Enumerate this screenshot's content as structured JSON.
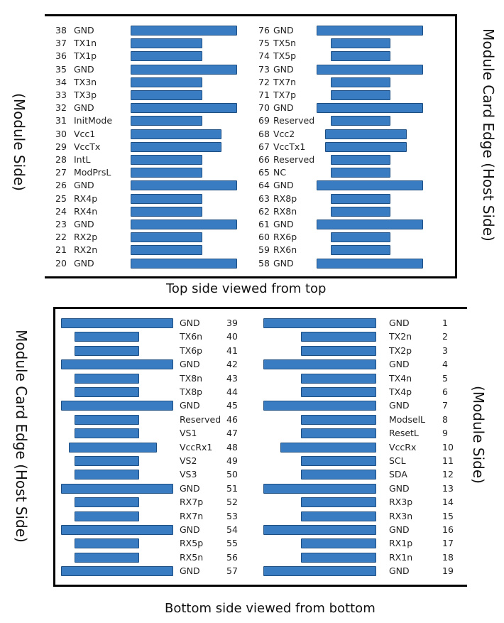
{
  "colors": {
    "pin_fill": "#3a7cc2",
    "pin_border": "#1f4f82",
    "frame": "#000000"
  },
  "top": {
    "caption": "Top side viewed from top",
    "left_side_label": "(Module Side)",
    "right_side_label": "Module Card Edge (Host Side)",
    "left_column": [
      {
        "num": "38",
        "name": "GND",
        "len": "long"
      },
      {
        "num": "37",
        "name": "TX1n",
        "len": "short"
      },
      {
        "num": "36",
        "name": "TX1p",
        "len": "short"
      },
      {
        "num": "35",
        "name": "GND",
        "len": "long"
      },
      {
        "num": "34",
        "name": "TX3n",
        "len": "short"
      },
      {
        "num": "33",
        "name": "TX3p",
        "len": "short"
      },
      {
        "num": "32",
        "name": "GND",
        "len": "long"
      },
      {
        "num": "31",
        "name": "InitMode",
        "len": "short"
      },
      {
        "num": "30",
        "name": "Vcc1",
        "len": "medium"
      },
      {
        "num": "29",
        "name": "VccTx",
        "len": "medium"
      },
      {
        "num": "28",
        "name": "IntL",
        "len": "short"
      },
      {
        "num": "27",
        "name": "ModPrsL",
        "len": "short"
      },
      {
        "num": "26",
        "name": "GND",
        "len": "long"
      },
      {
        "num": "25",
        "name": "RX4p",
        "len": "short"
      },
      {
        "num": "24",
        "name": "RX4n",
        "len": "short"
      },
      {
        "num": "23",
        "name": "GND",
        "len": "long"
      },
      {
        "num": "22",
        "name": "RX2p",
        "len": "short"
      },
      {
        "num": "21",
        "name": "RX2n",
        "len": "short"
      },
      {
        "num": "20",
        "name": "GND",
        "len": "long"
      }
    ],
    "right_column": [
      {
        "num": "76",
        "name": "GND",
        "len": "long"
      },
      {
        "num": "75",
        "name": "TX5n",
        "len": "short"
      },
      {
        "num": "74",
        "name": "TX5p",
        "len": "short"
      },
      {
        "num": "73",
        "name": "GND",
        "len": "long"
      },
      {
        "num": "72",
        "name": "TX7n",
        "len": "short"
      },
      {
        "num": "71",
        "name": "TX7p",
        "len": "short"
      },
      {
        "num": "70",
        "name": "GND",
        "len": "long"
      },
      {
        "num": "69",
        "name": "Reserved",
        "len": "short"
      },
      {
        "num": "68",
        "name": "Vcc2",
        "len": "medium"
      },
      {
        "num": "67",
        "name": "VccTx1",
        "len": "medium"
      },
      {
        "num": "66",
        "name": "Reserved",
        "len": "short"
      },
      {
        "num": "65",
        "name": "NC",
        "len": "short"
      },
      {
        "num": "64",
        "name": "GND",
        "len": "long"
      },
      {
        "num": "63",
        "name": "RX8p",
        "len": "short"
      },
      {
        "num": "62",
        "name": "RX8n",
        "len": "short"
      },
      {
        "num": "61",
        "name": "GND",
        "len": "long"
      },
      {
        "num": "60",
        "name": "RX6p",
        "len": "short"
      },
      {
        "num": "59",
        "name": "RX6n",
        "len": "short"
      },
      {
        "num": "58",
        "name": "GND",
        "len": "long"
      }
    ]
  },
  "bottom": {
    "caption": "Bottom side viewed from bottom",
    "left_side_label": "Module Card Edge (Host Side)",
    "right_side_label": "(Module Side)",
    "left_column": [
      {
        "num": "39",
        "name": "GND",
        "len": "long"
      },
      {
        "num": "40",
        "name": "TX6n",
        "len": "short"
      },
      {
        "num": "41",
        "name": "TX6p",
        "len": "short"
      },
      {
        "num": "42",
        "name": "GND",
        "len": "long"
      },
      {
        "num": "43",
        "name": "TX8n",
        "len": "short"
      },
      {
        "num": "44",
        "name": "TX8p",
        "len": "short"
      },
      {
        "num": "45",
        "name": "GND",
        "len": "long"
      },
      {
        "num": "46",
        "name": "Reserved",
        "len": "short"
      },
      {
        "num": "47",
        "name": "VS1",
        "len": "short"
      },
      {
        "num": "48",
        "name": "VccRx1",
        "len": "medium"
      },
      {
        "num": "49",
        "name": "VS2",
        "len": "short"
      },
      {
        "num": "50",
        "name": "VS3",
        "len": "short"
      },
      {
        "num": "51",
        "name": "GND",
        "len": "long"
      },
      {
        "num": "52",
        "name": "RX7p",
        "len": "short"
      },
      {
        "num": "53",
        "name": "RX7n",
        "len": "short"
      },
      {
        "num": "54",
        "name": "GND",
        "len": "long"
      },
      {
        "num": "55",
        "name": "RX5p",
        "len": "short"
      },
      {
        "num": "56",
        "name": "RX5n",
        "len": "short"
      },
      {
        "num": "57",
        "name": "GND",
        "len": "long"
      }
    ],
    "right_column": [
      {
        "num": "1",
        "name": "GND",
        "len": "long"
      },
      {
        "num": "2",
        "name": "TX2n",
        "len": "short"
      },
      {
        "num": "3",
        "name": "TX2p",
        "len": "short"
      },
      {
        "num": "4",
        "name": "GND",
        "len": "long"
      },
      {
        "num": "5",
        "name": "TX4n",
        "len": "short"
      },
      {
        "num": "6",
        "name": "TX4p",
        "len": "short"
      },
      {
        "num": "7",
        "name": "GND",
        "len": "long"
      },
      {
        "num": "8",
        "name": "ModselL",
        "len": "short"
      },
      {
        "num": "9",
        "name": "ResetL",
        "len": "short"
      },
      {
        "num": "10",
        "name": "VccRx",
        "len": "medium"
      },
      {
        "num": "11",
        "name": "SCL",
        "len": "short"
      },
      {
        "num": "12",
        "name": "SDA",
        "len": "short"
      },
      {
        "num": "13",
        "name": "GND",
        "len": "long"
      },
      {
        "num": "14",
        "name": "RX3p",
        "len": "short"
      },
      {
        "num": "15",
        "name": "RX3n",
        "len": "short"
      },
      {
        "num": "16",
        "name": "GND",
        "len": "long"
      },
      {
        "num": "17",
        "name": "RX1p",
        "len": "short"
      },
      {
        "num": "18",
        "name": "RX1n",
        "len": "short"
      },
      {
        "num": "19",
        "name": "GND",
        "len": "long"
      }
    ]
  }
}
